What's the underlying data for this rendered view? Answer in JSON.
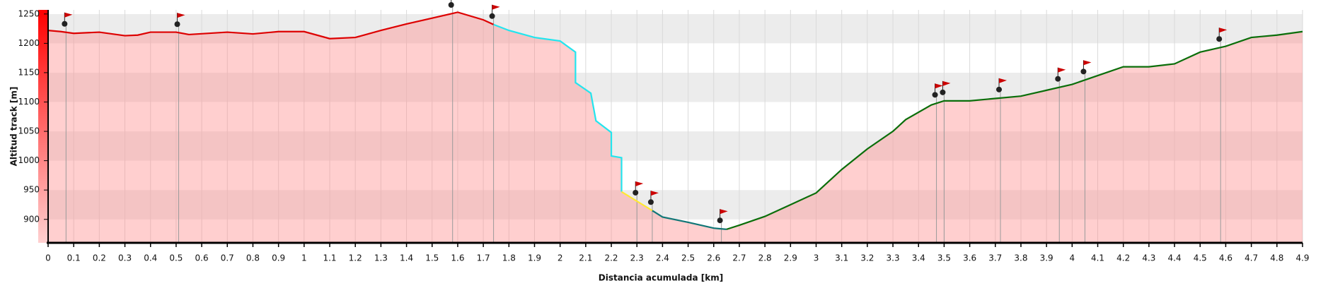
{
  "chart_data": {
    "type": "area-line",
    "x_label": "Distancia acumulada [km]",
    "y_label": "Altitud track [m]",
    "xlim": [
      0,
      4.9
    ],
    "ylim": [
      860,
      1257
    ],
    "xticks": [
      0,
      0.1,
      0.2,
      0.3,
      0.4,
      0.5,
      0.6,
      0.7,
      0.8,
      0.9,
      1,
      1.1,
      1.2,
      1.3,
      1.4,
      1.5,
      1.6,
      1.7,
      1.8,
      1.9,
      2,
      2.1,
      2.2,
      2.3,
      2.4,
      2.5,
      2.6,
      2.7,
      2.8,
      2.9,
      3,
      3.1,
      3.2,
      3.3,
      3.4,
      3.5,
      3.6,
      3.7,
      3.8,
      3.9,
      4,
      4.1,
      4.2,
      4.3,
      4.4,
      4.5,
      4.6,
      4.7,
      4.8,
      4.9
    ],
    "yticks": [
      900,
      950,
      1000,
      1050,
      1100,
      1150,
      1200,
      1250
    ],
    "grid": true,
    "fill_color": "#ff8c8c",
    "series": [
      {
        "color": "#dd0000",
        "x": [
          0,
          0.05,
          0.1,
          0.2,
          0.3,
          0.35,
          0.4,
          0.5,
          0.55,
          0.7,
          0.8,
          0.9,
          1.0,
          1.1,
          1.2,
          1.3,
          1.4,
          1.5,
          1.6,
          1.7,
          1.74
        ],
        "values": [
          1222,
          1220,
          1217,
          1219,
          1213,
          1214,
          1219,
          1219,
          1215,
          1219,
          1216,
          1220,
          1220,
          1208,
          1210,
          1222,
          1233,
          1243,
          1253,
          1240,
          1232
        ]
      },
      {
        "color": "#22e5ee",
        "x": [
          1.74,
          1.8,
          1.9,
          2.0,
          2.06,
          2.06,
          2.12,
          2.14,
          2.2,
          2.2,
          2.24,
          2.24
        ],
        "values": [
          1232,
          1222,
          1210,
          1204,
          1185,
          1133,
          1115,
          1068,
          1048,
          1008,
          1005,
          947
        ]
      },
      {
        "color": "#ffe833",
        "x": [
          2.24,
          2.36
        ],
        "values": [
          947,
          915
        ]
      },
      {
        "color": "#117777",
        "x": [
          2.36,
          2.4,
          2.5,
          2.6,
          2.65
        ],
        "values": [
          915,
          904,
          895,
          885,
          883
        ]
      },
      {
        "color": "#0a6e0a",
        "x": [
          2.65,
          2.7,
          2.8,
          2.9,
          3.0,
          3.05,
          3.1,
          3.2,
          3.3,
          3.35,
          3.45,
          3.5,
          3.6,
          3.7,
          3.8,
          3.9,
          4.0,
          4.1,
          4.2,
          4.3,
          4.4,
          4.5,
          4.6,
          4.7,
          4.8,
          4.9
        ],
        "values": [
          883,
          890,
          905,
          925,
          945,
          965,
          985,
          1020,
          1050,
          1070,
          1095,
          1102,
          1102,
          1106,
          1110,
          1120,
          1130,
          1145,
          1160,
          1160,
          1165,
          1185,
          1195,
          1210,
          1214,
          1220
        ]
      }
    ],
    "waypoints_x": [
      0.07,
      0.51,
      1.58,
      1.74,
      2.3,
      2.36,
      2.63,
      3.47,
      3.5,
      3.72,
      3.95,
      4.05,
      4.58
    ]
  }
}
